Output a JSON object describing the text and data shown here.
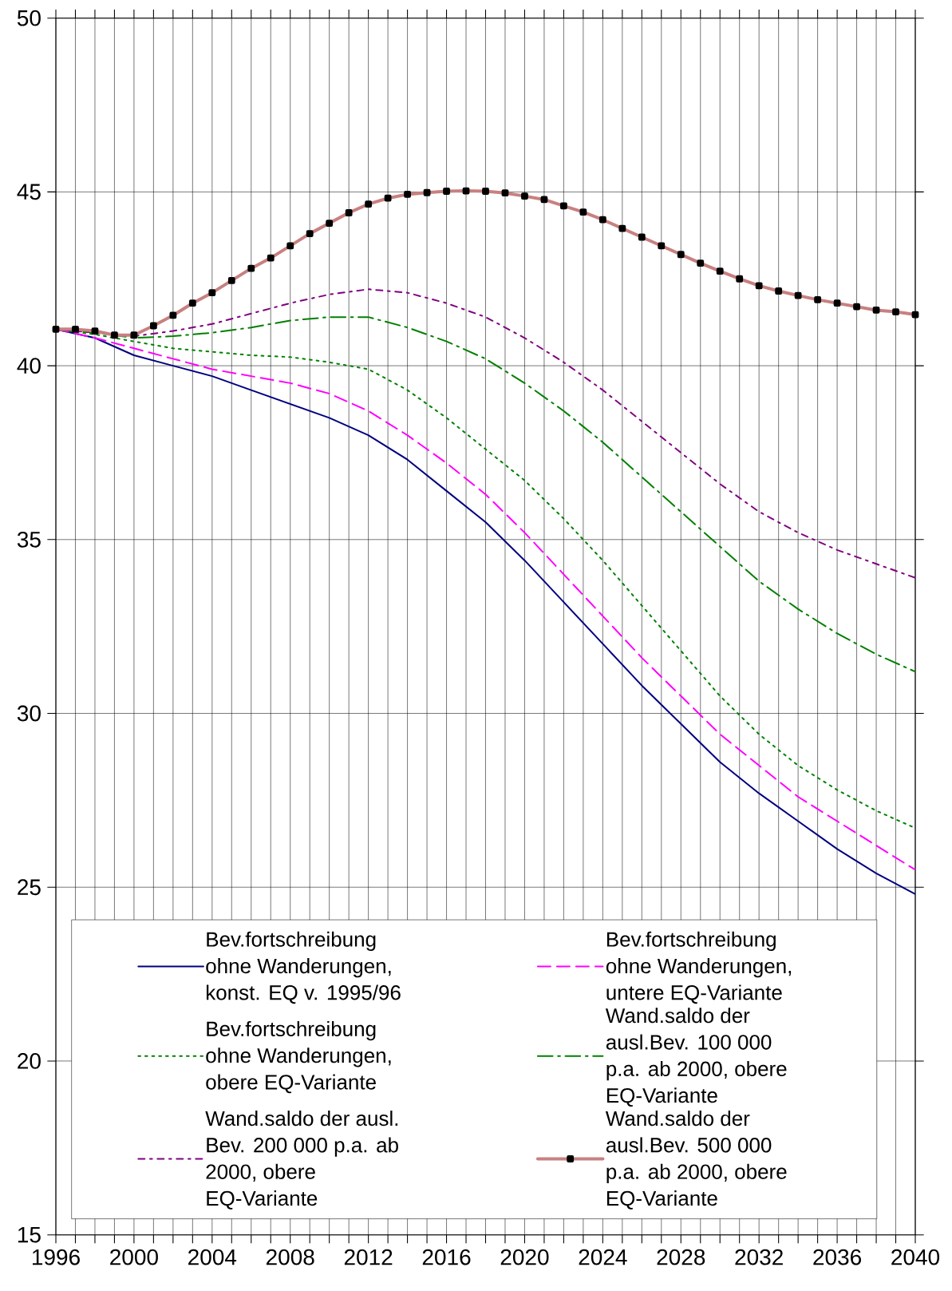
{
  "chart_data": {
    "type": "line",
    "x": [
      1996,
      1998,
      2000,
      2002,
      2004,
      2006,
      2008,
      2010,
      2012,
      2014,
      2016,
      2018,
      2020,
      2022,
      2024,
      2026,
      2028,
      2030,
      2032,
      2034,
      2036,
      2038,
      2040
    ],
    "series": [
      {
        "name": "Bev.fortschreibung ohne Wanderungen, konst. EQ v. 1995/96",
        "color": "#000080",
        "line_style": "solid",
        "values": [
          41.05,
          40.8,
          40.3,
          40.0,
          39.7,
          39.3,
          38.9,
          38.5,
          38.0,
          37.3,
          36.4,
          35.5,
          34.4,
          33.2,
          32.0,
          30.8,
          29.7,
          28.6,
          27.7,
          26.9,
          26.1,
          25.4,
          24.8
        ]
      },
      {
        "name": "Bev.fortschreibung ohne Wanderungen, untere EQ-Variante",
        "color": "#ff00ff",
        "line_style": "dashed",
        "values": [
          41.05,
          40.8,
          40.5,
          40.2,
          39.9,
          39.7,
          39.5,
          39.2,
          38.7,
          38.0,
          37.2,
          36.3,
          35.2,
          34.0,
          32.8,
          31.6,
          30.5,
          29.4,
          28.5,
          27.6,
          26.9,
          26.2,
          25.5
        ]
      },
      {
        "name": "Bev.fortschreibung ohne Wanderungen, obere EQ-Variante",
        "color": "#008000",
        "line_style": "dotted",
        "values": [
          41.05,
          40.9,
          40.7,
          40.5,
          40.4,
          40.3,
          40.25,
          40.1,
          39.9,
          39.3,
          38.5,
          37.6,
          36.7,
          35.6,
          34.4,
          33.1,
          31.8,
          30.5,
          29.4,
          28.5,
          27.8,
          27.2,
          26.7
        ]
      },
      {
        "name": "Wand.saldo der ausl.Bev. 100 000 p.a. ab 2000, obere EQ-Variante",
        "color": "#008000",
        "line_style": "dashdot",
        "values": [
          41.05,
          40.95,
          40.8,
          40.85,
          40.95,
          41.1,
          41.3,
          41.4,
          41.4,
          41.1,
          40.7,
          40.2,
          39.5,
          38.7,
          37.8,
          36.8,
          35.8,
          34.8,
          33.8,
          33.0,
          32.3,
          31.7,
          31.2
        ]
      },
      {
        "name": "Wand.saldo der ausl. Bev. 200 000 p.a. ab 2000, obere EQ-Variante",
        "color": "#800080",
        "line_style": "dashdotted",
        "values": [
          41.05,
          40.95,
          40.85,
          41.0,
          41.2,
          41.5,
          41.8,
          42.05,
          42.2,
          42.1,
          41.8,
          41.4,
          40.8,
          40.1,
          39.3,
          38.4,
          37.5,
          36.6,
          35.8,
          35.2,
          34.7,
          34.3,
          33.9
        ]
      },
      {
        "name": "Wand.saldo der ausl.Bev. 500 000 p.a. ab 2000, obere EQ-Variante",
        "color": "#c88080",
        "line_style": "solid",
        "marker": "square",
        "x": [
          1996,
          1997,
          1998,
          1999,
          2000,
          2001,
          2002,
          2003,
          2004,
          2005,
          2006,
          2007,
          2008,
          2009,
          2010,
          2011,
          2012,
          2013,
          2014,
          2015,
          2016,
          2017,
          2018,
          2019,
          2020,
          2021,
          2022,
          2023,
          2024,
          2025,
          2026,
          2027,
          2028,
          2029,
          2030,
          2031,
          2032,
          2033,
          2034,
          2035,
          2036,
          2037,
          2038,
          2039,
          2040
        ],
        "values": [
          41.05,
          41.05,
          41.0,
          40.88,
          40.88,
          41.15,
          41.45,
          41.8,
          42.1,
          42.45,
          42.8,
          43.1,
          43.45,
          43.8,
          44.1,
          44.4,
          44.65,
          44.82,
          44.93,
          44.98,
          45.02,
          45.03,
          45.02,
          44.97,
          44.88,
          44.78,
          44.6,
          44.42,
          44.2,
          43.95,
          43.7,
          43.45,
          43.2,
          42.95,
          42.72,
          42.5,
          42.3,
          42.15,
          42.02,
          41.9,
          41.8,
          41.7,
          41.6,
          41.55,
          41.47
        ]
      }
    ],
    "xlim": [
      1996,
      2040
    ],
    "xticks": [
      1996,
      {
        "value": 1997,
        "label": null
      },
      {
        "value": 1998,
        "label": null
      },
      {
        "value": 1999,
        "label": null
      },
      2000,
      {
        "value": 2001,
        "label": null
      },
      {
        "value": 2002,
        "label": null
      },
      {
        "value": 2003,
        "label": null
      },
      2004,
      {
        "value": 2005,
        "label": null
      },
      {
        "value": 2006,
        "label": null
      },
      {
        "value": 2007,
        "label": null
      },
      2008,
      {
        "value": 2009,
        "label": null
      },
      {
        "value": 2010,
        "label": null
      },
      {
        "value": 2011,
        "label": null
      },
      2012,
      {
        "value": 2013,
        "label": null
      },
      {
        "value": 2014,
        "label": null
      },
      {
        "value": 2015,
        "label": null
      },
      2016,
      {
        "value": 2017,
        "label": null
      },
      {
        "value": 2018,
        "label": null
      },
      {
        "value": 2019,
        "label": null
      },
      2020,
      {
        "value": 2021,
        "label": null
      },
      {
        "value": 2022,
        "label": null
      },
      {
        "value": 2023,
        "label": null
      },
      2024,
      {
        "value": 2025,
        "label": null
      },
      {
        "value": 2026,
        "label": null
      },
      {
        "value": 2027,
        "label": null
      },
      2028,
      {
        "value": 2029,
        "label": null
      },
      {
        "value": 2030,
        "label": null
      },
      {
        "value": 2031,
        "label": null
      },
      2032,
      {
        "value": 2033,
        "label": null
      },
      {
        "value": 2034,
        "label": null
      },
      {
        "value": 2035,
        "label": null
      },
      2036,
      {
        "value": 2037,
        "label": null
      },
      {
        "value": 2038,
        "label": null
      },
      {
        "value": 2039,
        "label": null
      },
      2040
    ],
    "ylim": [
      15,
      50
    ],
    "yticks": [
      15,
      20,
      25,
      30,
      35,
      40,
      45,
      50
    ],
    "grid": true,
    "legend": "bottom"
  }
}
